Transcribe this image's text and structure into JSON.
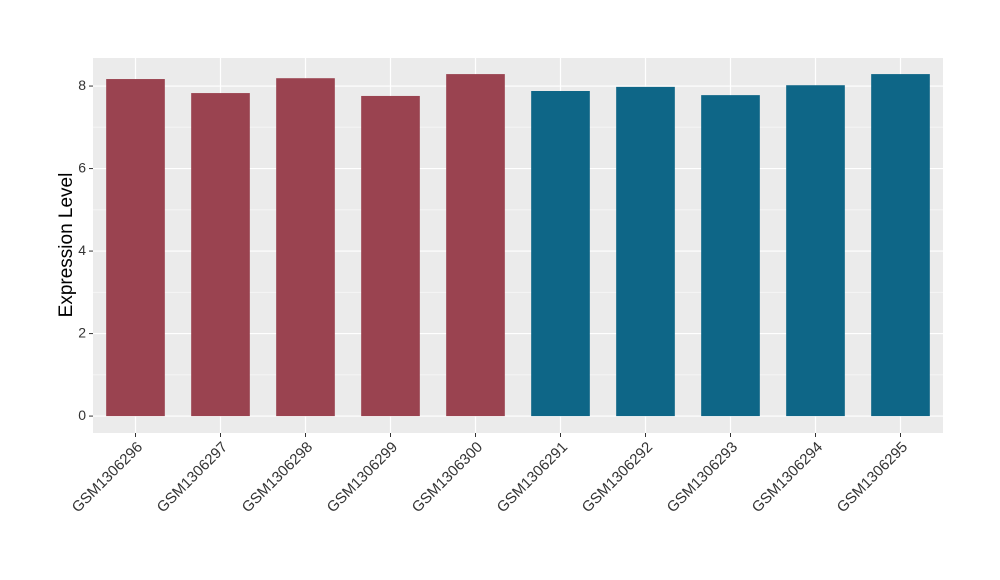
{
  "chart_data": {
    "type": "bar",
    "y_label": "Expression Level",
    "categories": [
      "GSM1306296",
      "GSM1306297",
      "GSM1306298",
      "GSM1306299",
      "GSM1306300",
      "GSM1306291",
      "GSM1306292",
      "GSM1306293",
      "GSM1306294",
      "GSM1306295"
    ],
    "values": [
      8.17,
      7.83,
      8.19,
      7.76,
      8.29,
      7.88,
      7.98,
      7.78,
      8.02,
      8.29
    ],
    "colors": [
      "#9a4350",
      "#9a4350",
      "#9a4350",
      "#9a4350",
      "#9a4350",
      "#0e6687",
      "#0e6687",
      "#0e6687",
      "#0e6687",
      "#0e6687"
    ],
    "ylim": [
      -0.41,
      8.68
    ],
    "yticks": [
      0,
      2,
      4,
      6,
      8
    ],
    "grid": true
  }
}
